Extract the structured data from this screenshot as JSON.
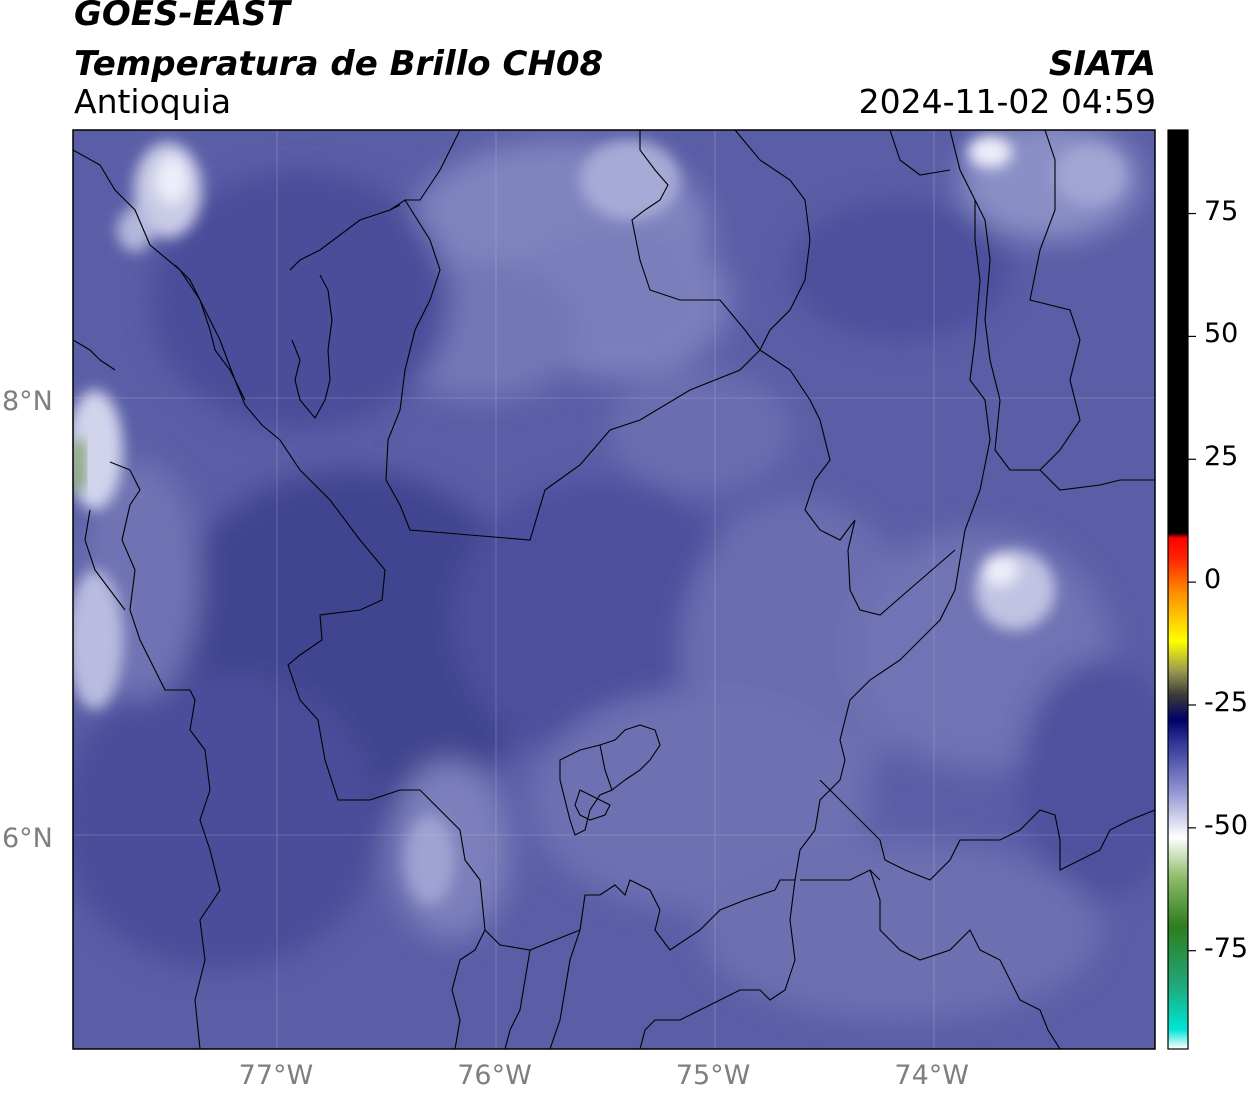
{
  "header": {
    "title_main": "GOES-EAST",
    "title_sub": "Temperatura de Brillo CH08",
    "region": "Antioquia",
    "brand": "SIATA",
    "timestamp": "2024-11-02 04:59"
  },
  "map": {
    "lon_range": [
      -77.95,
      -73.0
    ],
    "lat_range": [
      5.05,
      9.25
    ],
    "lat_ticks": [
      {
        "value": 8,
        "label": "8°N"
      },
      {
        "value": 6,
        "label": "6°N"
      }
    ],
    "lon_ticks": [
      {
        "value": -77,
        "label": "77°W"
      },
      {
        "value": -76,
        "label": "76°W"
      },
      {
        "value": -75,
        "label": "75°W"
      },
      {
        "value": -74,
        "label": "74°W"
      }
    ],
    "gridlines": true,
    "background_color": "#5a5ea6"
  },
  "colorbar": {
    "range": [
      -95,
      92
    ],
    "ticks": [
      {
        "value": 75,
        "label": "75"
      },
      {
        "value": 50,
        "label": "50"
      },
      {
        "value": 25,
        "label": "25"
      },
      {
        "value": 0,
        "label": "0"
      },
      {
        "value": -25,
        "label": "-25"
      },
      {
        "value": -50,
        "label": "-50"
      },
      {
        "value": -75,
        "label": "-75"
      }
    ],
    "stops": [
      {
        "value": -95,
        "color": "#ffffff"
      },
      {
        "value": -91,
        "color": "#00e5d6"
      },
      {
        "value": -82,
        "color": "#1fa87a"
      },
      {
        "value": -70,
        "color": "#2e7d1e"
      },
      {
        "value": -60,
        "color": "#8fbd6a"
      },
      {
        "value": -52,
        "color": "#ffffff"
      },
      {
        "value": -42,
        "color": "#8c8fcf"
      },
      {
        "value": -32,
        "color": "#2a2f94"
      },
      {
        "value": -28,
        "color": "#000066"
      },
      {
        "value": -23,
        "color": "#3a3a3a"
      },
      {
        "value": -18,
        "color": "#9a9a50"
      },
      {
        "value": -12,
        "color": "#ffff00"
      },
      {
        "value": -2,
        "color": "#ff8c00"
      },
      {
        "value": 5,
        "color": "#ff2200"
      },
      {
        "value": 9,
        "color": "#ff0000"
      },
      {
        "value": 10,
        "color": "#000000"
      },
      {
        "value": 92,
        "color": "#000000"
      }
    ]
  }
}
